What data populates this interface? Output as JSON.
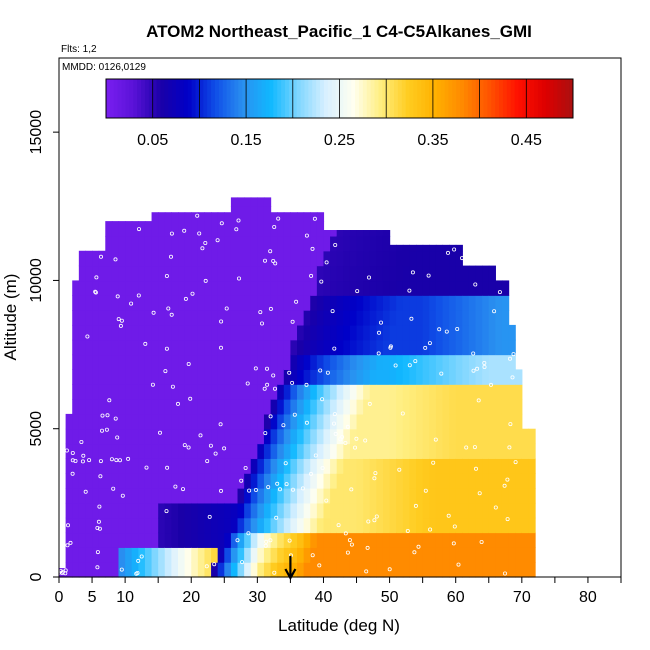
{
  "chart_data": {
    "type": "heatmap",
    "title": "ATOM2 Northeast_Pacific_1 C4-C5Alkanes_GMI",
    "notes": [
      "Flts: 1,2",
      "MMDD: 0126,0129"
    ],
    "xlabel": "Latitude (deg N)",
    "ylabel": "Altitude (m)",
    "xlim": [
      0,
      85
    ],
    "ylim": [
      0,
      17500
    ],
    "x_ticks": [
      0,
      5,
      10,
      20,
      30,
      40,
      50,
      60,
      70,
      80
    ],
    "y_ticks": [
      0,
      5000,
      10000,
      15000
    ],
    "colorbar": {
      "range": [
        0,
        0.5
      ],
      "tick_values": [
        0.05,
        0.15,
        0.25,
        0.35,
        0.45
      ],
      "tick_labels": [
        "0.05",
        "0.15",
        "0.25",
        "0.35",
        "0.45"
      ],
      "palette": [
        "#7a1ff0",
        "#5a12d8",
        "#1a00a8",
        "#0000c8",
        "#1050e8",
        "#2a90f0",
        "#10b8ff",
        "#7fd6ff",
        "#d8f0ff",
        "#fffff0",
        "#ffee80",
        "#ffcc20",
        "#ffb000",
        "#ff8800",
        "#ff5000",
        "#ff1000",
        "#dd0000",
        "#aa1010"
      ]
    },
    "arrow_latitude": 35,
    "colors": {
      "axis": "#000000",
      "marker": "#ffffff"
    }
  }
}
